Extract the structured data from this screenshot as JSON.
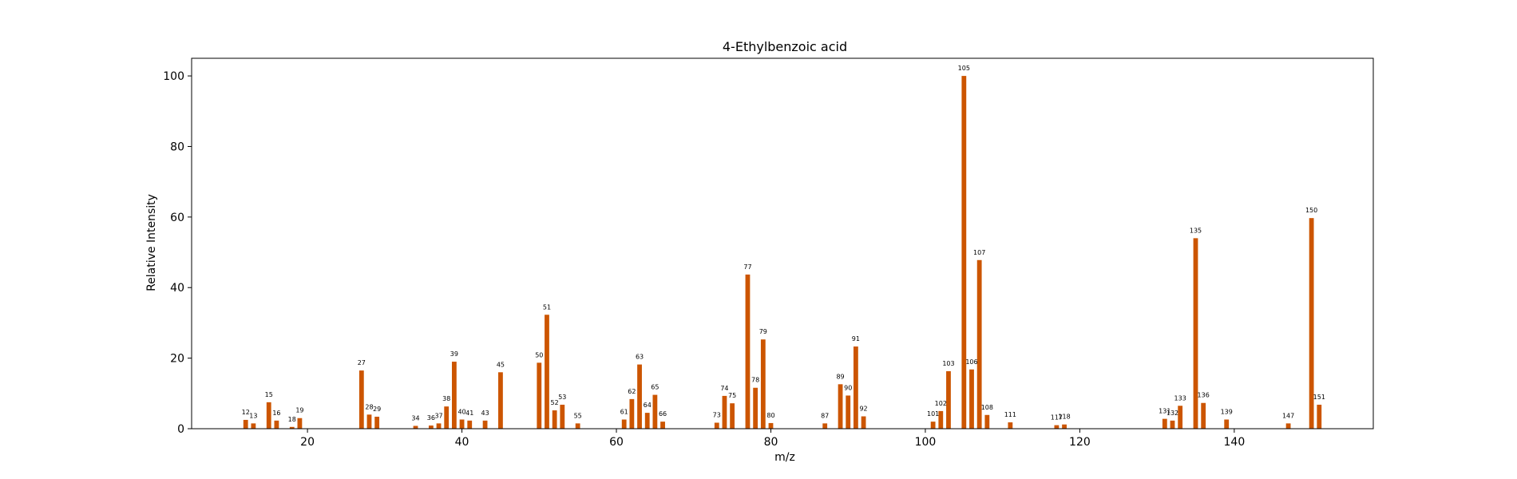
{
  "chart_data": {
    "type": "bar",
    "title": "4-Ethylbenzoic acid",
    "xlabel": "m/z",
    "ylabel": "Relative Intensity",
    "xlim": [
      5,
      158
    ],
    "ylim": [
      0,
      105
    ],
    "xticks": [
      20,
      40,
      60,
      80,
      100,
      120,
      140
    ],
    "yticks": [
      0,
      20,
      40,
      60,
      80,
      100
    ],
    "grid": false,
    "bar_color": "#cc5500",
    "x": [
      12,
      13,
      15,
      16,
      18,
      19,
      27,
      28,
      29,
      34,
      36,
      37,
      38,
      39,
      40,
      41,
      43,
      45,
      50,
      51,
      52,
      53,
      55,
      61,
      62,
      63,
      64,
      65,
      66,
      73,
      74,
      75,
      77,
      78,
      79,
      80,
      87,
      89,
      90,
      91,
      92,
      101,
      102,
      103,
      105,
      106,
      107,
      108,
      111,
      117,
      118,
      131,
      132,
      133,
      135,
      136,
      139,
      147,
      150,
      151
    ],
    "values": [
      2.5,
      1.5,
      7.5,
      2.3,
      0.5,
      3.0,
      16.5,
      4.0,
      3.4,
      0.8,
      0.9,
      1.5,
      6.3,
      19.0,
      2.6,
      2.3,
      2.3,
      16.0,
      18.7,
      32.3,
      5.2,
      6.8,
      1.5,
      2.6,
      8.4,
      18.2,
      4.5,
      9.6,
      2.0,
      1.7,
      9.3,
      7.2,
      43.7,
      11.6,
      25.3,
      1.6,
      1.5,
      12.6,
      9.4,
      23.3,
      3.5,
      2.0,
      5.0,
      16.3,
      100.0,
      16.8,
      47.8,
      3.9,
      1.8,
      1.0,
      1.2,
      2.8,
      2.3,
      6.5,
      54.0,
      7.3,
      2.6,
      1.5,
      59.7,
      6.8
    ],
    "labels": [
      "12",
      "13",
      "15",
      "16",
      "18",
      "19",
      "27",
      "28",
      "29",
      "34",
      "36",
      "37",
      "38",
      "39",
      "40",
      "41",
      "43",
      "45",
      "50",
      "51",
      "52",
      "53",
      "55",
      "61",
      "62",
      "63",
      "64",
      "65",
      "66",
      "73",
      "74",
      "75",
      "77",
      "78",
      "79",
      "80",
      "87",
      "89",
      "90",
      "91",
      "92",
      "101",
      "102",
      "103",
      "105",
      "106",
      "107",
      "108",
      "111",
      "117",
      "118",
      "131",
      "132",
      "133",
      "135",
      "136",
      "139",
      "147",
      "150",
      "151"
    ]
  }
}
